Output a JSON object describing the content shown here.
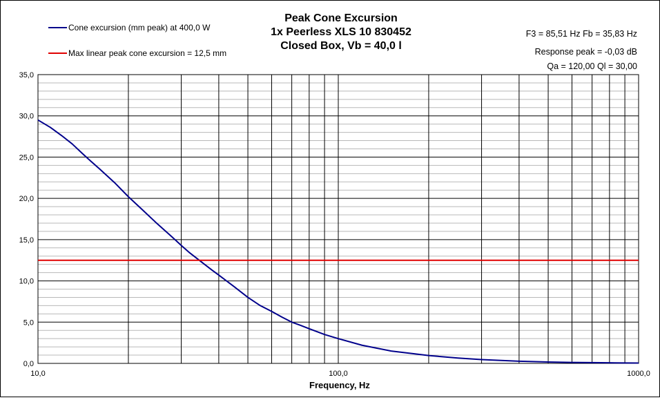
{
  "title_lines": [
    "Peak Cone Excursion",
    "1x Peerless XLS 10 830452",
    "Closed Box, Vb = 40,0 l"
  ],
  "info_lines": [
    "F3 = 85,51 Hz  Fb = 35,83 Hz",
    "Response  peak = -0,03 dB",
    "Qa = 120,00  Ql = 30,00"
  ],
  "chart_data": {
    "type": "line",
    "xscale": "log",
    "xlim": [
      10,
      1000
    ],
    "ylim": [
      0,
      35
    ],
    "xlabel": "Frequency, Hz",
    "ylabel": "",
    "grid": true,
    "legend_position": "top-left",
    "x_tick_labels": [
      "10,0",
      "100,0",
      "1000,0"
    ],
    "y_tick_labels": [
      "0,0",
      "5,0",
      "10,0",
      "15,0",
      "20,0",
      "25,0",
      "30,0",
      "35,0"
    ],
    "series": [
      {
        "name": "Cone excursion (mm peak) at 400,0 W",
        "color": "#00008b",
        "x": [
          10,
          11,
          12,
          13,
          14,
          15,
          16,
          18,
          20,
          22,
          25,
          28,
          30,
          32,
          35,
          38,
          40,
          45,
          50,
          55,
          60,
          65,
          70,
          75,
          80,
          90,
          100,
          120,
          150,
          200,
          250,
          300,
          400,
          500,
          600,
          700,
          800,
          900,
          1000
        ],
        "y": [
          29.5,
          28.6,
          27.6,
          26.6,
          25.5,
          24.5,
          23.6,
          21.9,
          20.2,
          18.8,
          16.9,
          15.3,
          14.3,
          13.4,
          12.3,
          11.3,
          10.7,
          9.3,
          8.0,
          7.0,
          6.3,
          5.6,
          5.0,
          4.6,
          4.2,
          3.5,
          3.0,
          2.2,
          1.5,
          0.95,
          0.65,
          0.46,
          0.26,
          0.17,
          0.12,
          0.09,
          0.07,
          0.05,
          0.04
        ]
      },
      {
        "name": "Max linear peak cone excursion = 12,5 mm",
        "color": "#e00000",
        "x": [
          10,
          1000
        ],
        "y": [
          12.5,
          12.5
        ]
      }
    ]
  }
}
